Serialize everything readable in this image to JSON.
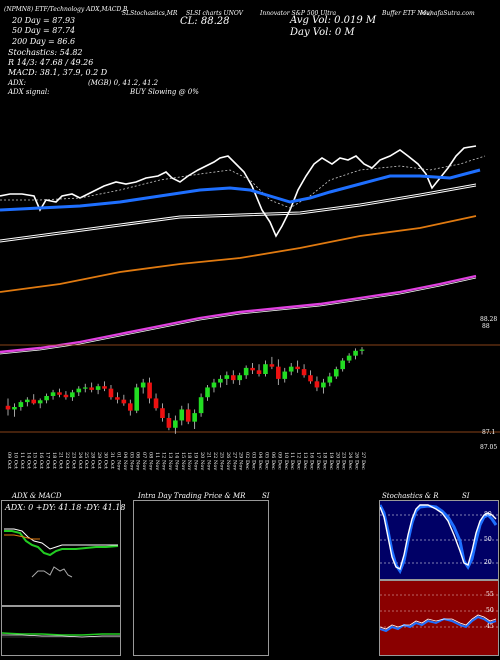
{
  "header": {
    "symbol_line": "MunafaSutra.com",
    "stock_label": "(NPMN8) ETF/Technology ADX,MACD,B",
    "cl_label": "CL: 88.28",
    "vol_label": "Avg Vol: 0.019 M",
    "day_vol": "Day Vol: 0 M",
    "ema20": "20 Day = 87.93",
    "ema50": "50 Day = 87.74",
    "ema200": "200 Day = 86.6",
    "stochastics": "Stochastics: 54.82",
    "rsi_line": "R 14/3: 47.68 / 49.26",
    "macd_line": "MACD: 38.1, 37.9, 0.2 D",
    "adx_line": "ADX:",
    "adx_values": "(MGB) 0, 41.2, 41.2",
    "adx_signal_label": "ADX signal:",
    "adx_signal_value": "BUY Slowing @ 0%",
    "legend_parts": [
      "SLStochastics,MR",
      "SLSI charts UNOV",
      "Innovator S&P 500 Ultra",
      "Buffer ETF Nov)",
      "MunafaSutra.com"
    ]
  },
  "price_axis": {
    "labels": [
      "88.28",
      "88",
      "87.1",
      "87.05"
    ]
  },
  "colors": {
    "up": "#22dd22",
    "down": "#ee1111",
    "ema_blue": "#1e6fff",
    "ema_orange": "#e07a10",
    "ema_magenta": "#e040e0",
    "price_line": "#ffffff",
    "guide_line": "#b4581f"
  },
  "bottom_panels": {
    "adx_macd_title": "ADX & MACD",
    "intraday_title": "Intra Day Trading Price & MR",
    "intraday_si": "SI",
    "stoch_title": "Stochastics & R",
    "stoch_si": "SI",
    "adx_readout": "ADX: 0 +DY: 41.18 -DY: 41.18",
    "stoch_ticks": [
      "80",
      "50",
      "20"
    ],
    "rsi_ticks": [
      "55",
      "50",
      "45"
    ]
  },
  "chart_data": {
    "type": "candlestick",
    "x": [
      "09 Oct",
      "10 Oct",
      "11 Oct",
      "14 Oct",
      "15 Oct",
      "16 Oct",
      "17 Oct",
      "18 Oct",
      "21 Oct",
      "22 Oct",
      "23 Oct",
      "24 Oct",
      "25 Oct",
      "28 Oct",
      "29 Oct",
      "30 Oct",
      "31 Oct",
      "01 Nov",
      "04 Nov",
      "05 Nov",
      "06 Nov",
      "07 Nov",
      "08 Nov",
      "11 Nov",
      "12 Nov",
      "13 Nov",
      "14 Nov",
      "15 Nov",
      "18 Nov",
      "19 Nov",
      "20 Nov",
      "21 Nov",
      "22 Nov",
      "25 Nov",
      "26 Nov",
      "27 Nov",
      "29 Nov",
      "02 Dec",
      "03 Dec",
      "04 Dec",
      "05 Dec",
      "06 Dec",
      "09 Dec",
      "10 Dec",
      "11 Dec",
      "12 Dec",
      "13 Dec",
      "16 Dec",
      "17 Dec",
      "18 Dec",
      "19 Dec",
      "20 Dec",
      "23 Dec",
      "24 Dec",
      "26 Dec",
      "27 Dec"
    ],
    "candles": [
      [
        87.36,
        87.48,
        87.2,
        87.3
      ],
      [
        87.3,
        87.4,
        87.18,
        87.34
      ],
      [
        87.34,
        87.45,
        87.28,
        87.42
      ],
      [
        87.42,
        87.5,
        87.35,
        87.46
      ],
      [
        87.46,
        87.55,
        87.38,
        87.4
      ],
      [
        87.4,
        87.48,
        87.32,
        87.45
      ],
      [
        87.45,
        87.56,
        87.4,
        87.52
      ],
      [
        87.52,
        87.62,
        87.46,
        87.58
      ],
      [
        87.58,
        87.64,
        87.5,
        87.54
      ],
      [
        87.54,
        87.6,
        87.46,
        87.5
      ],
      [
        87.5,
        87.62,
        87.44,
        87.58
      ],
      [
        87.58,
        87.68,
        87.52,
        87.64
      ],
      [
        87.64,
        87.72,
        87.58,
        87.66
      ],
      [
        87.66,
        87.74,
        87.58,
        87.62
      ],
      [
        87.62,
        87.72,
        87.55,
        87.68
      ],
      [
        87.68,
        87.76,
        87.6,
        87.64
      ],
      [
        87.64,
        87.7,
        87.46,
        87.5
      ],
      [
        87.5,
        87.58,
        87.4,
        87.46
      ],
      [
        87.46,
        87.54,
        87.36,
        87.4
      ],
      [
        87.4,
        87.46,
        87.2,
        87.28
      ],
      [
        87.28,
        87.72,
        87.24,
        87.66
      ],
      [
        87.66,
        87.8,
        87.56,
        87.74
      ],
      [
        87.74,
        87.82,
        87.4,
        87.48
      ],
      [
        87.48,
        87.56,
        87.28,
        87.32
      ],
      [
        87.32,
        87.4,
        87.1,
        87.16
      ],
      [
        87.16,
        87.24,
        86.96,
        87.0
      ],
      [
        87.0,
        87.2,
        86.9,
        87.12
      ],
      [
        87.12,
        87.36,
        87.04,
        87.3
      ],
      [
        87.3,
        87.4,
        87.06,
        87.1
      ],
      [
        87.1,
        87.3,
        86.98,
        87.24
      ],
      [
        87.24,
        87.56,
        87.18,
        87.5
      ],
      [
        87.5,
        87.7,
        87.44,
        87.66
      ],
      [
        87.66,
        87.8,
        87.58,
        87.74
      ],
      [
        87.74,
        87.86,
        87.66,
        87.8
      ],
      [
        87.8,
        87.92,
        87.7,
        87.86
      ],
      [
        87.86,
        87.94,
        87.72,
        87.78
      ],
      [
        87.78,
        87.9,
        87.7,
        87.86
      ],
      [
        87.86,
        88.02,
        87.8,
        87.98
      ],
      [
        87.98,
        88.06,
        87.88,
        87.94
      ],
      [
        87.94,
        88.04,
        87.84,
        87.88
      ],
      [
        87.88,
        88.1,
        87.84,
        88.04
      ],
      [
        88.04,
        88.16,
        87.96,
        88.0
      ],
      [
        88.0,
        88.12,
        87.7,
        87.8
      ],
      [
        87.8,
        87.98,
        87.74,
        87.92
      ],
      [
        87.92,
        88.06,
        87.86,
        88.0
      ],
      [
        88.0,
        88.1,
        87.9,
        87.96
      ],
      [
        87.96,
        88.04,
        87.82,
        87.86
      ],
      [
        87.86,
        87.94,
        87.72,
        87.76
      ],
      [
        87.76,
        87.84,
        87.6,
        87.66
      ],
      [
        87.66,
        87.8,
        87.56,
        87.74
      ],
      [
        87.74,
        87.9,
        87.68,
        87.84
      ],
      [
        87.84,
        88.0,
        87.8,
        87.96
      ],
      [
        87.96,
        88.14,
        87.92,
        88.1
      ],
      [
        88.1,
        88.22,
        88.06,
        88.18
      ],
      [
        88.18,
        88.3,
        88.12,
        88.26
      ],
      [
        88.26,
        88.32,
        88.2,
        88.28
      ]
    ],
    "price_range": [
      86.8,
      88.6
    ],
    "ema_series": [
      {
        "name": "20 Day",
        "color": "#1e6fff"
      },
      {
        "name": "50 Day",
        "color": "#e07a10"
      },
      {
        "name": "200 Day",
        "color": "#e040e0"
      }
    ]
  }
}
